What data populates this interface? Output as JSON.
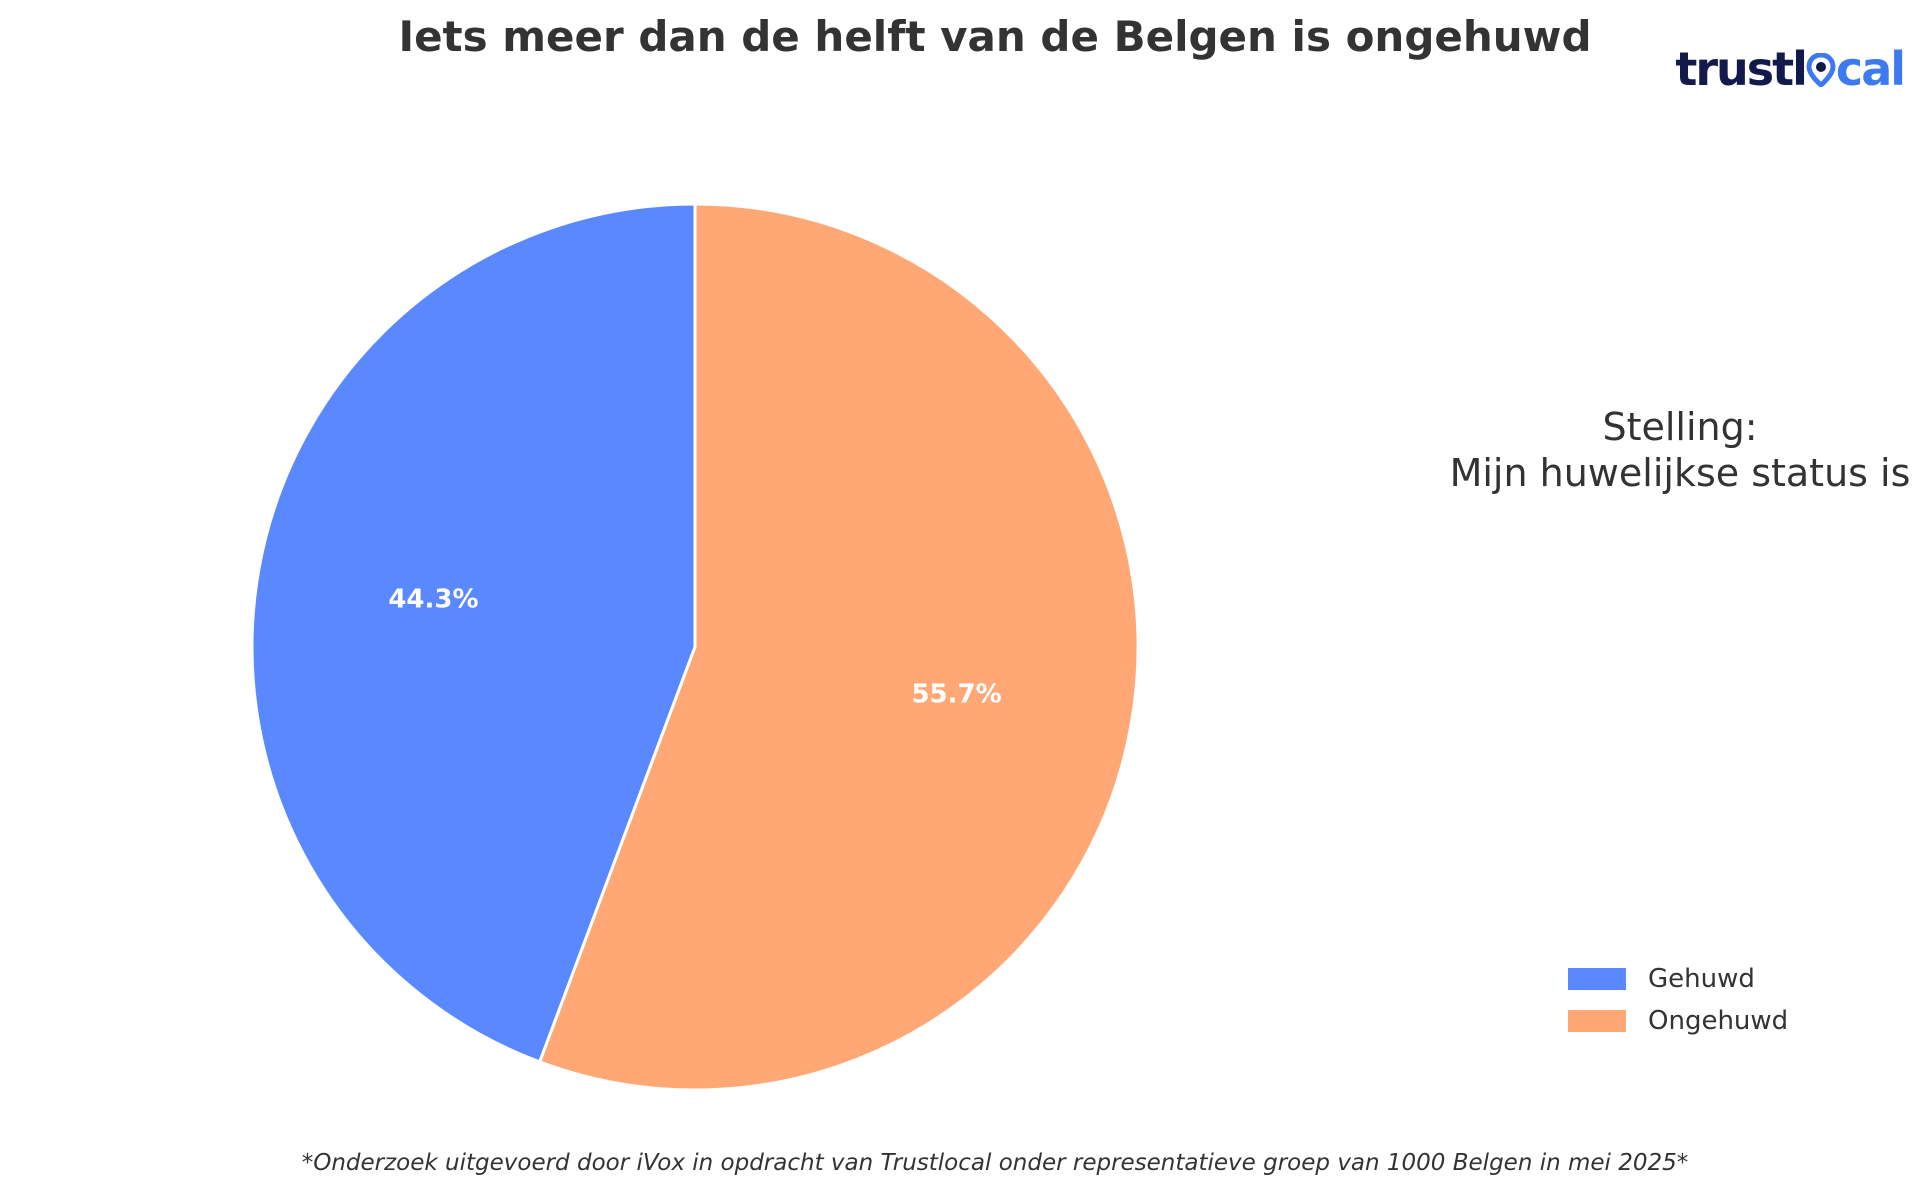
{
  "chart_data": {
    "type": "pie",
    "title": "Iets meer dan de helft van de Belgen is ongehuwd",
    "subtitle_line1": "Stelling:",
    "subtitle_line2": "Mijn huwelijkse status is",
    "categories": [
      "Gehuwd",
      "Ongehuwd"
    ],
    "values": [
      44.3,
      55.7
    ],
    "labels": [
      "44.3%",
      "55.7%"
    ],
    "colors": [
      "#5a88fe",
      "#ffa875"
    ],
    "start_angle": "top (12 o'clock)",
    "direction": "counterclockwise",
    "legend_position": "lower-right",
    "footnote": "*Onderzoek uitgevoerd door iVox in opdracht van Trustlocal onder representatieve groep van 1000 Belgen in mei 2025*"
  },
  "logo": {
    "part1": "trustl",
    "part2": "cal",
    "icon": "location-pin-icon"
  }
}
